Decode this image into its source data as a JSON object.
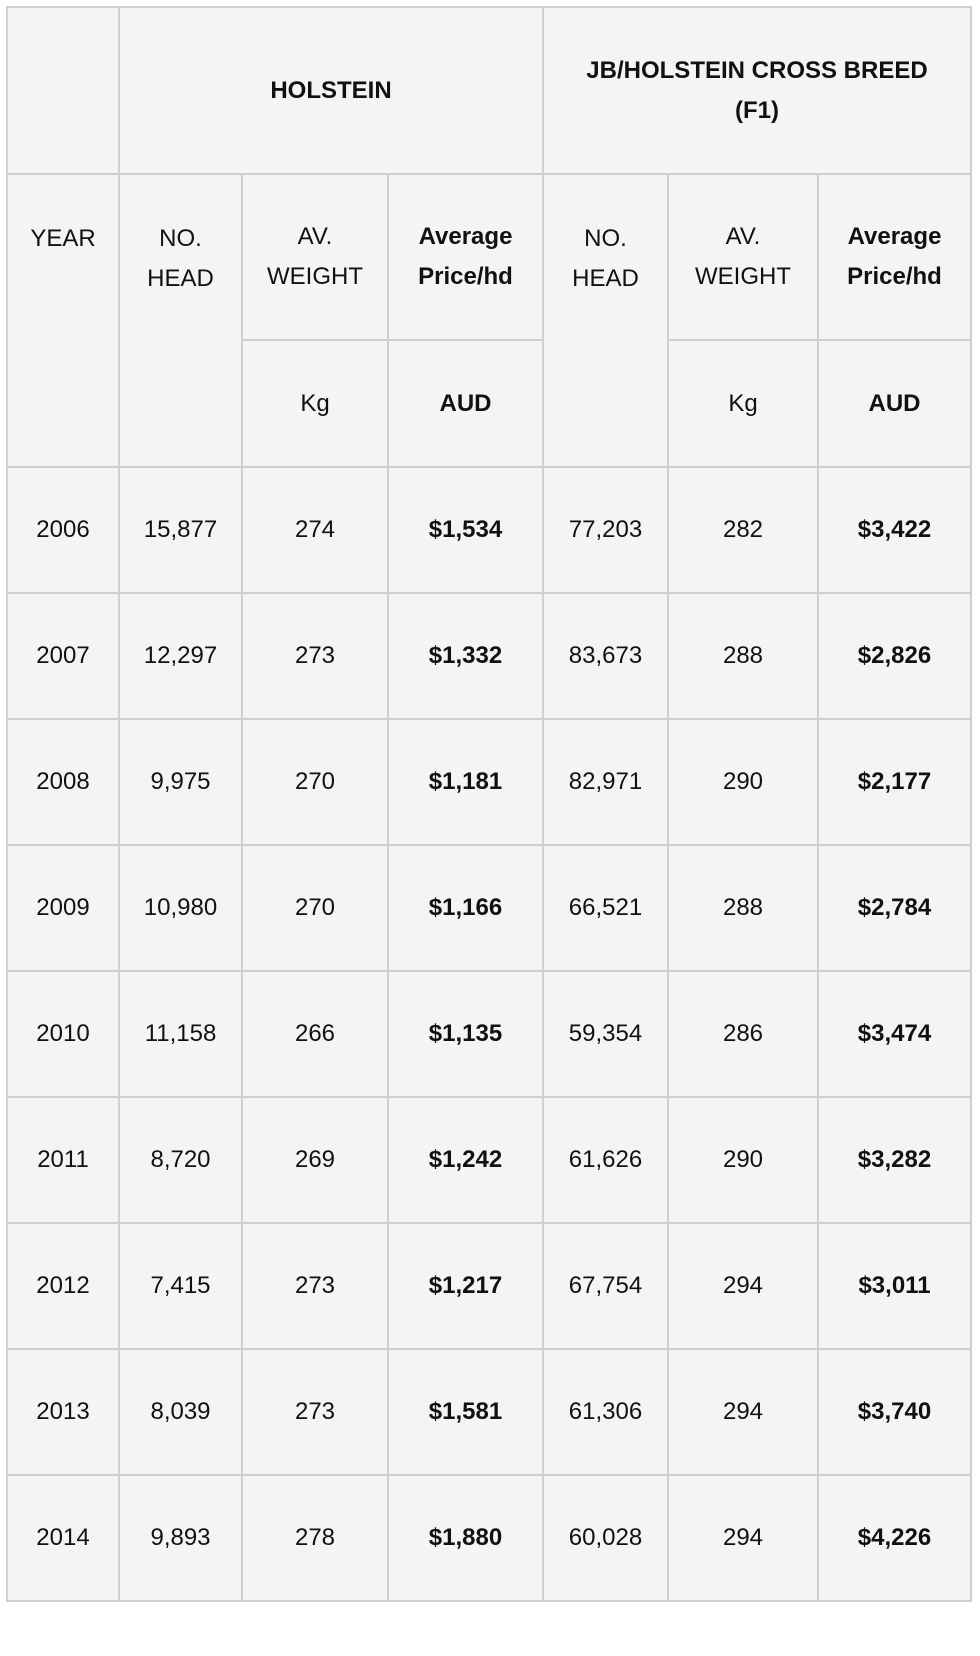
{
  "header": {
    "group_holstein": "HOLSTEIN",
    "group_cross": "JB/HOLSTEIN CROSS BREED (F1)",
    "year": "YEAR",
    "no_head": "NO. HEAD",
    "av_weight": "AV. WEIGHT",
    "avg_price": "Average Price/hd",
    "unit_weight": "Kg",
    "unit_price": "AUD"
  },
  "rows": [
    {
      "year": "2006",
      "h_head": "15,877",
      "h_weight": "274",
      "h_price": "$1,534",
      "c_head": "77,203",
      "c_weight": "282",
      "c_price": "$3,422"
    },
    {
      "year": "2007",
      "h_head": "12,297",
      "h_weight": "273",
      "h_price": "$1,332",
      "c_head": "83,673",
      "c_weight": "288",
      "c_price": "$2,826"
    },
    {
      "year": "2008",
      "h_head": "9,975",
      "h_weight": "270",
      "h_price": "$1,181",
      "c_head": "82,971",
      "c_weight": "290",
      "c_price": "$2,177"
    },
    {
      "year": "2009",
      "h_head": "10,980",
      "h_weight": "270",
      "h_price": "$1,166",
      "c_head": "66,521",
      "c_weight": "288",
      "c_price": "$2,784"
    },
    {
      "year": "2010",
      "h_head": "11,158",
      "h_weight": "266",
      "h_price": "$1,135",
      "c_head": "59,354",
      "c_weight": "286",
      "c_price": "$3,474"
    },
    {
      "year": "2011",
      "h_head": "8,720",
      "h_weight": "269",
      "h_price": "$1,242",
      "c_head": "61,626",
      "c_weight": "290",
      "c_price": "$3,282"
    },
    {
      "year": "2012",
      "h_head": "7,415",
      "h_weight": "273",
      "h_price": "$1,217",
      "c_head": "67,754",
      "c_weight": "294",
      "c_price": "$3,011"
    },
    {
      "year": "2013",
      "h_head": "8,039",
      "h_weight": "273",
      "h_price": "$1,581",
      "c_head": "61,306",
      "c_weight": "294",
      "c_price": "$3,740"
    },
    {
      "year": "2014",
      "h_head": "9,893",
      "h_weight": "278",
      "h_price": "$1,880",
      "c_head": "60,028",
      "c_weight": "294",
      "c_price": "$4,226"
    }
  ]
}
